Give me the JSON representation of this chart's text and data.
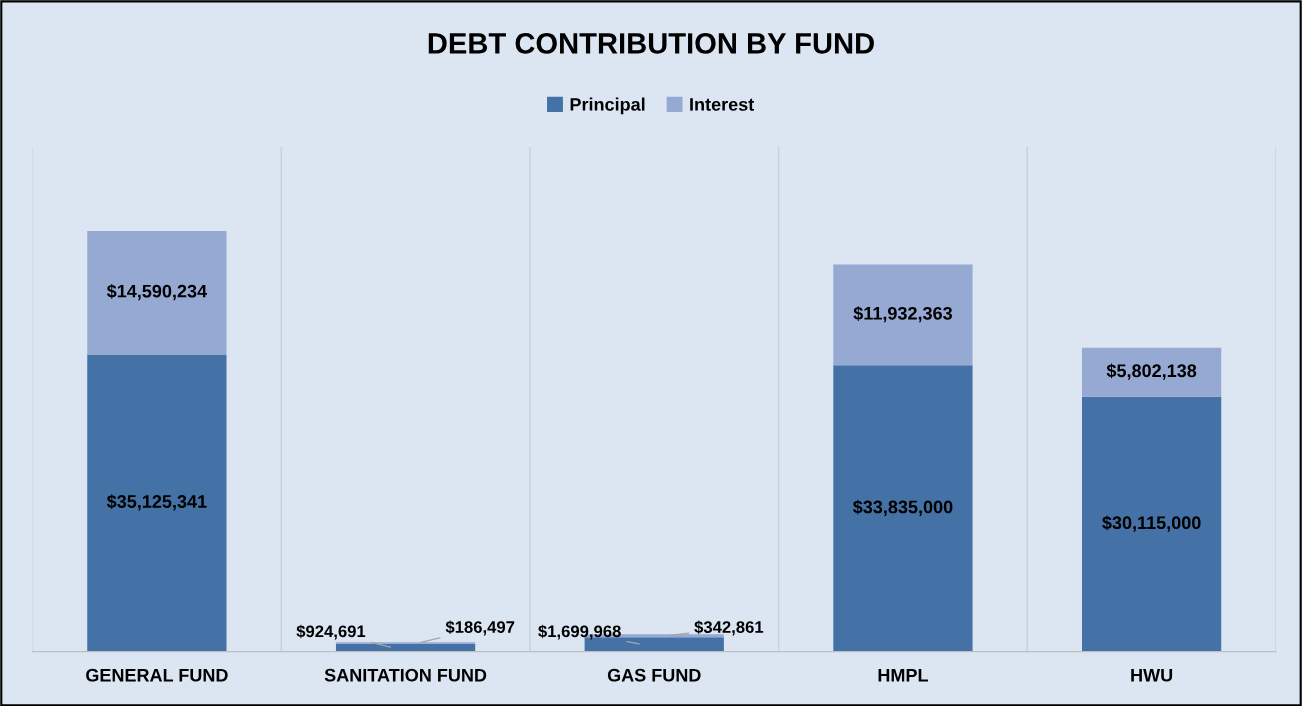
{
  "chart_data": {
    "type": "bar",
    "title": "DEBT CONTRIBUTION BY FUND",
    "stacked": true,
    "legend": "top",
    "grid": "x",
    "categories": [
      "GENERAL FUND",
      "SANITATION FUND",
      "GAS FUND",
      "HMPL",
      "HWU"
    ],
    "series": [
      {
        "name": "Principal",
        "color": "#4472a6",
        "values": [
          35125341,
          924691,
          1699968,
          33835000,
          30115000
        ],
        "value_labels": [
          "$35,125,341",
          "$924,691",
          "$1,699,968",
          "$33,835,000",
          "$30,115,000"
        ]
      },
      {
        "name": "Interest",
        "color": "#96a9d2",
        "values": [
          14590234,
          186497,
          342861,
          11932363,
          5802138
        ],
        "value_labels": [
          "$14,590,234",
          "$186,497",
          "$342,861",
          "$11,932,363",
          "$5,802,138"
        ]
      }
    ]
  }
}
